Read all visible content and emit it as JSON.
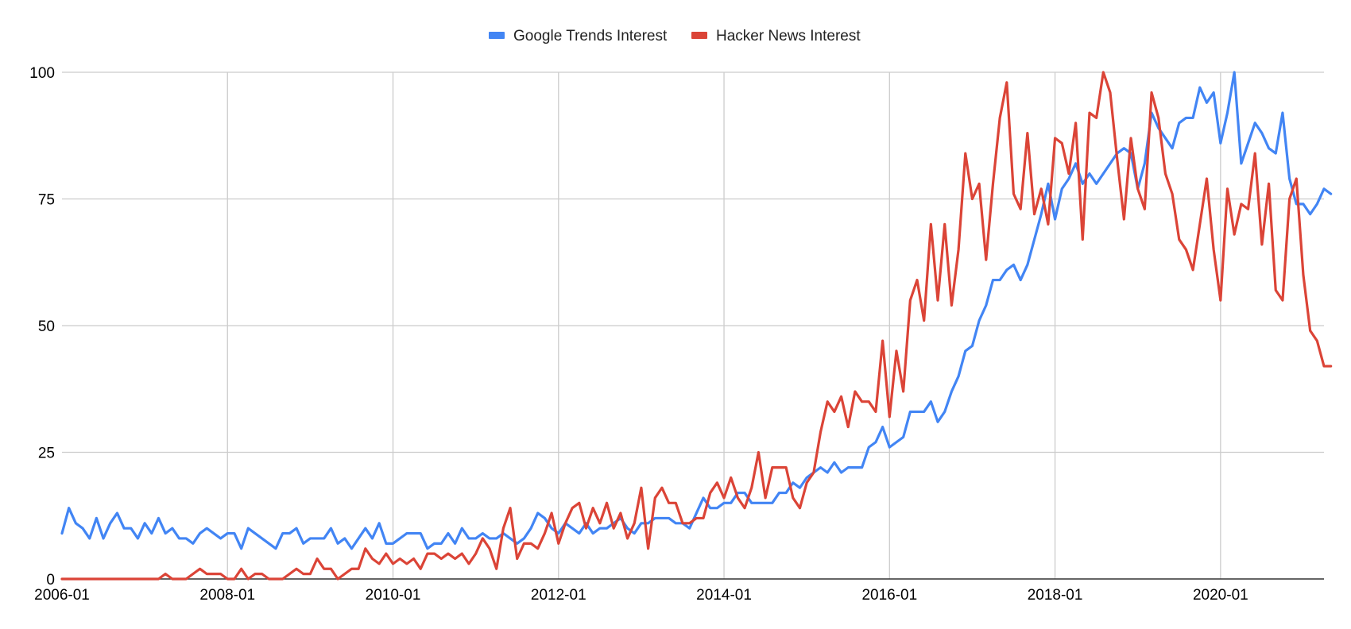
{
  "chart_data": {
    "type": "line",
    "title": "",
    "xlabel": "",
    "ylabel": "",
    "x_start": "2006-01",
    "x_end": "2021-04",
    "xticks": [
      "2006-01",
      "2008-01",
      "2010-01",
      "2012-01",
      "2014-01",
      "2016-01",
      "2018-01",
      "2020-01"
    ],
    "ylim": [
      0,
      100
    ],
    "yticks": [
      0,
      25,
      50,
      75,
      100
    ],
    "grid": true,
    "legend_position": "top",
    "series": [
      {
        "name": "Google Trends Interest",
        "color": "#4285F4",
        "values": [
          9,
          14,
          11,
          10,
          8,
          12,
          8,
          11,
          13,
          10,
          10,
          8,
          11,
          9,
          12,
          9,
          10,
          8,
          8,
          7,
          9,
          10,
          9,
          8,
          9,
          9,
          6,
          10,
          9,
          8,
          7,
          6,
          9,
          9,
          10,
          7,
          8,
          8,
          8,
          10,
          7,
          8,
          6,
          8,
          10,
          8,
          11,
          7,
          7,
          8,
          9,
          9,
          9,
          6,
          7,
          7,
          9,
          7,
          10,
          8,
          8,
          9,
          8,
          8,
          9,
          8,
          7,
          8,
          10,
          13,
          12,
          10,
          9,
          11,
          10,
          9,
          11,
          9,
          10,
          10,
          11,
          12,
          10,
          9,
          11,
          11,
          12,
          12,
          12,
          11,
          11,
          10,
          13,
          16,
          14,
          14,
          15,
          15,
          17,
          17,
          15,
          15,
          15,
          15,
          17,
          17,
          19,
          18,
          20,
          21,
          22,
          21,
          23,
          21,
          22,
          22,
          22,
          26,
          27,
          30,
          26,
          27,
          28,
          33,
          33,
          33,
          35,
          31,
          33,
          37,
          40,
          45,
          46,
          51,
          54,
          59,
          59,
          61,
          62,
          59,
          62,
          67,
          72,
          78,
          71,
          77,
          79,
          82,
          78,
          80,
          78,
          80,
          82,
          84,
          85,
          84,
          77,
          82,
          92,
          89,
          87,
          85,
          90,
          91,
          91,
          97,
          94,
          96,
          86,
          92,
          100,
          82,
          86,
          90,
          88,
          85,
          84,
          92,
          79,
          74,
          74,
          72,
          74,
          77,
          76
        ]
      },
      {
        "name": "Hacker News Interest",
        "color": "#DB4437",
        "values": [
          0,
          0,
          0,
          0,
          0,
          0,
          0,
          0,
          0,
          0,
          0,
          0,
          0,
          0,
          0,
          1,
          0,
          0,
          0,
          1,
          2,
          1,
          1,
          1,
          0,
          0,
          2,
          0,
          1,
          1,
          0,
          0,
          0,
          1,
          2,
          1,
          1,
          4,
          2,
          2,
          0,
          1,
          2,
          2,
          6,
          4,
          3,
          5,
          3,
          4,
          3,
          4,
          2,
          5,
          5,
          4,
          5,
          4,
          5,
          3,
          5,
          8,
          6,
          2,
          10,
          14,
          4,
          7,
          7,
          6,
          9,
          13,
          7,
          11,
          14,
          15,
          10,
          14,
          11,
          15,
          10,
          13,
          8,
          11,
          18,
          6,
          16,
          18,
          15,
          15,
          11,
          11,
          12,
          12,
          17,
          19,
          16,
          20,
          16,
          14,
          18,
          25,
          16,
          22,
          22,
          22,
          16,
          14,
          19,
          21,
          29,
          35,
          33,
          36,
          30,
          37,
          35,
          35,
          33,
          47,
          32,
          45,
          37,
          55,
          59,
          51,
          70,
          55,
          70,
          54,
          65,
          84,
          75,
          78,
          63,
          78,
          91,
          98,
          76,
          73,
          88,
          72,
          77,
          70,
          87,
          86,
          80,
          90,
          67,
          92,
          91,
          100,
          96,
          83,
          71,
          87,
          77,
          73,
          96,
          91,
          80,
          76,
          67,
          65,
          61,
          70,
          79,
          65,
          55,
          77,
          68,
          74,
          73,
          84,
          66,
          78,
          57,
          55,
          75,
          79,
          60,
          49,
          47,
          42,
          42
        ]
      }
    ]
  }
}
